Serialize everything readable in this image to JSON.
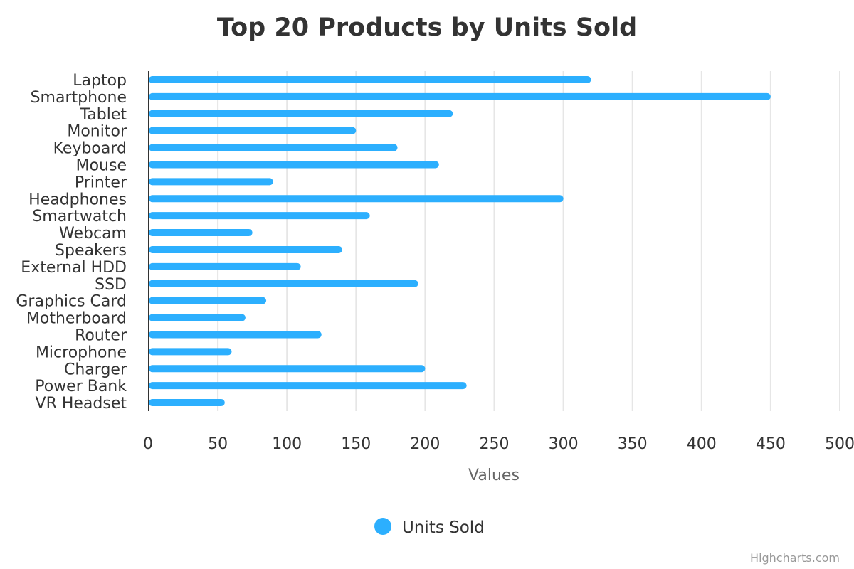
{
  "colors": {
    "series": "#2caffe",
    "title": "#333333",
    "grid": "#e6e6e6",
    "axis_title": "#666666",
    "credits": "#999999"
  },
  "legend": {
    "marker": "circle",
    "placement": "bottom-center"
  },
  "credits": "Highcharts.com",
  "chart_data": {
    "type": "bar",
    "orientation": "horizontal",
    "title": "Top 20 Products by Units Sold",
    "categories": [
      "Laptop",
      "Smartphone",
      "Tablet",
      "Monitor",
      "Keyboard",
      "Mouse",
      "Printer",
      "Headphones",
      "Smartwatch",
      "Webcam",
      "Speakers",
      "External HDD",
      "SSD",
      "Graphics Card",
      "Motherboard",
      "Router",
      "Microphone",
      "Charger",
      "Power Bank",
      "VR Headset"
    ],
    "series": [
      {
        "name": "Units Sold",
        "values": [
          320,
          450,
          220,
          150,
          180,
          210,
          90,
          300,
          160,
          75,
          140,
          110,
          195,
          85,
          70,
          125,
          60,
          200,
          230,
          55
        ]
      }
    ],
    "xlabel": "",
    "ylabel": "Values",
    "value_axis_range": [
      0,
      500
    ],
    "value_axis_ticks": [
      0,
      50,
      100,
      150,
      200,
      250,
      300,
      350,
      400,
      450,
      500
    ],
    "grid": true,
    "legend_placement": "bottom-center"
  }
}
